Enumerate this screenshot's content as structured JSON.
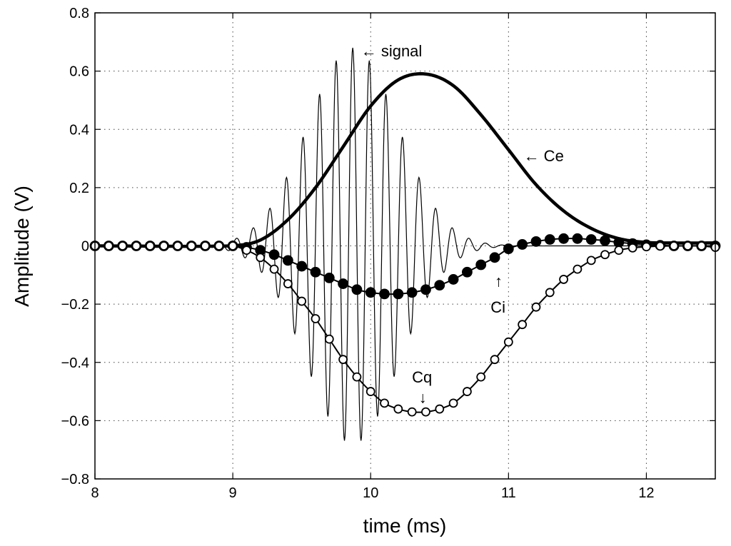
{
  "chart_data": {
    "type": "line",
    "title": "",
    "xlabel": "time (ms)",
    "ylabel": "Amplitude (V)",
    "xlim": [
      8,
      12.5
    ],
    "ylim": [
      -0.8,
      0.8
    ],
    "grid": true,
    "xticks": [
      8,
      9,
      10,
      11,
      12
    ],
    "yticks": [
      -0.8,
      -0.6,
      -0.4,
      -0.2,
      0,
      0.2,
      0.4,
      0.6,
      0.8
    ],
    "xtick_labels": [
      "8",
      "9",
      "10",
      "11",
      "12"
    ],
    "ytick_labels": [
      "−0.8",
      "−0.6",
      "−0.4",
      "−0.2",
      "0",
      "0.2",
      "0.4",
      "0.6",
      "0.8"
    ],
    "series": [
      {
        "name": "signal",
        "style": "thin-line",
        "color": "#000000",
        "envelope_center_ms": 9.87,
        "envelope_sigma_ms": 0.33,
        "peak_amplitude": 0.68,
        "carrier_freq_khz": 8.3,
        "start_ms": 8.85,
        "end_ms": 11.6
      },
      {
        "name": "Ce",
        "style": "thick-line",
        "color": "#000000",
        "x": [
          8.0,
          9.0,
          9.2,
          9.4,
          9.6,
          9.8,
          10.0,
          10.2,
          10.4,
          10.6,
          10.8,
          11.0,
          11.2,
          11.4,
          11.6,
          11.8,
          12.0,
          12.2,
          12.5
        ],
        "y": [
          0.0,
          0.0,
          0.02,
          0.09,
          0.2,
          0.34,
          0.48,
          0.57,
          0.59,
          0.55,
          0.45,
          0.33,
          0.21,
          0.12,
          0.06,
          0.025,
          0.012,
          0.01,
          0.01
        ]
      },
      {
        "name": "Ci",
        "style": "line-filled-circles",
        "color": "#000000",
        "x": [
          8.0,
          8.1,
          8.2,
          8.3,
          8.4,
          8.5,
          8.6,
          8.7,
          8.8,
          8.9,
          9.0,
          9.1,
          9.2,
          9.3,
          9.4,
          9.5,
          9.6,
          9.7,
          9.8,
          9.9,
          10.0,
          10.1,
          10.2,
          10.3,
          10.4,
          10.5,
          10.6,
          10.7,
          10.8,
          10.9,
          11.0,
          11.1,
          11.2,
          11.3,
          11.4,
          11.5,
          11.6,
          11.7,
          11.8,
          11.9,
          12.0,
          12.1,
          12.2,
          12.3,
          12.4,
          12.5
        ],
        "y": [
          0,
          0,
          0,
          0,
          0,
          0,
          0,
          0,
          0,
          0,
          0,
          -0.005,
          -0.015,
          -0.03,
          -0.05,
          -0.07,
          -0.09,
          -0.11,
          -0.13,
          -0.15,
          -0.16,
          -0.165,
          -0.165,
          -0.16,
          -0.15,
          -0.135,
          -0.115,
          -0.09,
          -0.065,
          -0.04,
          -0.01,
          0.005,
          0.015,
          0.022,
          0.025,
          0.025,
          0.022,
          0.018,
          0.012,
          0.008,
          0.004,
          0.002,
          0.0,
          0.0,
          0.0,
          0.0
        ]
      },
      {
        "name": "Cq",
        "style": "line-open-circles",
        "color": "#000000",
        "x": [
          8.0,
          8.1,
          8.2,
          8.3,
          8.4,
          8.5,
          8.6,
          8.7,
          8.8,
          8.9,
          9.0,
          9.1,
          9.2,
          9.3,
          9.4,
          9.5,
          9.6,
          9.7,
          9.8,
          9.9,
          10.0,
          10.1,
          10.2,
          10.3,
          10.4,
          10.5,
          10.6,
          10.7,
          10.8,
          10.9,
          11.0,
          11.1,
          11.2,
          11.3,
          11.4,
          11.5,
          11.6,
          11.7,
          11.8,
          11.9,
          12.0,
          12.1,
          12.2,
          12.3,
          12.4,
          12.5
        ],
        "y": [
          0,
          0,
          0,
          0,
          0,
          0,
          0,
          0,
          0,
          0,
          0,
          -0.015,
          -0.04,
          -0.08,
          -0.13,
          -0.19,
          -0.25,
          -0.32,
          -0.39,
          -0.45,
          -0.5,
          -0.54,
          -0.56,
          -0.57,
          -0.57,
          -0.56,
          -0.54,
          -0.5,
          -0.45,
          -0.39,
          -0.33,
          -0.27,
          -0.21,
          -0.16,
          -0.115,
          -0.08,
          -0.05,
          -0.03,
          -0.015,
          -0.007,
          -0.003,
          -0.001,
          0.0,
          0.0,
          0.0,
          -0.005
        ]
      }
    ],
    "annotations": [
      {
        "text": "← signal",
        "x": 9.93,
        "y": 0.67
      },
      {
        "text": "← Ce",
        "x": 11.11,
        "y": 0.31
      },
      {
        "text": "↑",
        "x": 10.9,
        "y": -0.12
      },
      {
        "text": "Ci",
        "x": 10.87,
        "y": -0.21
      },
      {
        "text": "Cq",
        "x": 10.3,
        "y": -0.45
      },
      {
        "text": "↓",
        "x": 10.35,
        "y": -0.52
      }
    ]
  }
}
